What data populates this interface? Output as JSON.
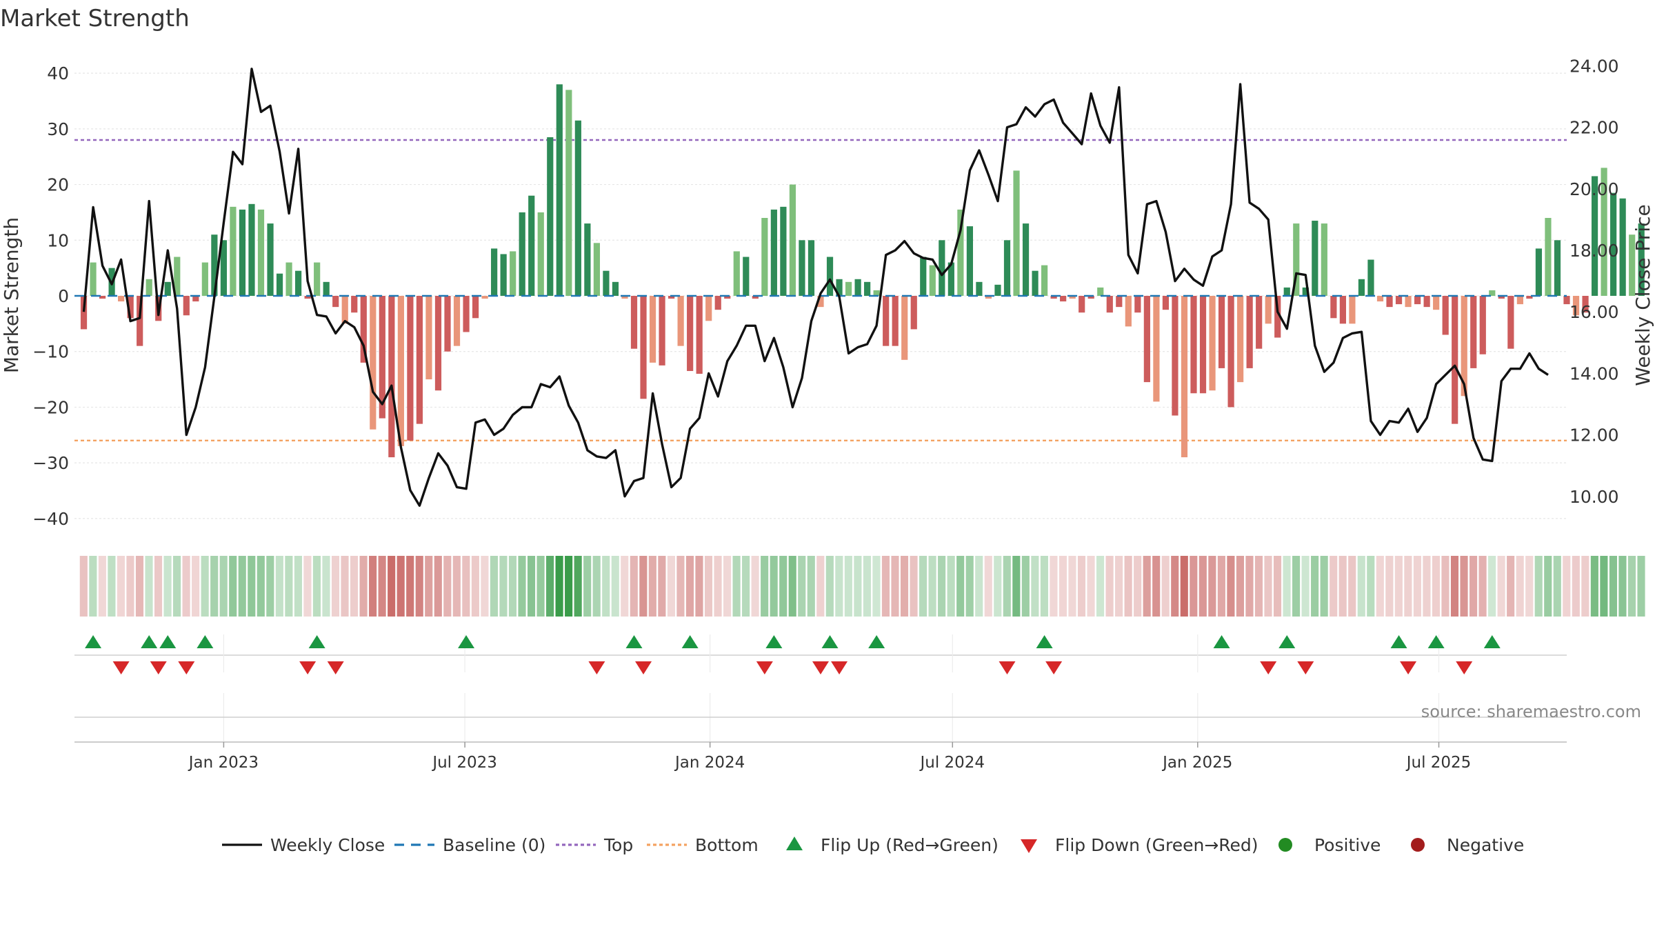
{
  "chart_data": {
    "type": "bar",
    "title": "Market Strength",
    "ylabel_left": "Market Strength",
    "ylabel_right": "Weekly Close Price",
    "source": "source: sharemaestro.com",
    "left_axis": {
      "ylim": [
        -42,
        42
      ],
      "ticks": [
        40,
        30,
        20,
        10,
        0,
        -10,
        -20,
        -30,
        -40
      ],
      "tick_labels": [
        "40",
        "30",
        "20",
        "10",
        "0",
        "−10",
        "−20",
        "−30",
        "−40"
      ]
    },
    "right_axis": {
      "ylim": [
        8.92,
        24.12
      ],
      "ticks": [
        24,
        22,
        20,
        18,
        16,
        14,
        12,
        10
      ],
      "tick_labels": [
        "24.00",
        "22.00",
        "20.00",
        "18.00",
        "16.00",
        "14.00",
        "12.00",
        "10.00"
      ]
    },
    "x_axis": {
      "start": "2022-09-11",
      "end": "2025-10-05",
      "ticks": [
        {
          "date": "2023-01-01",
          "label": "Jan 2023"
        },
        {
          "date": "2023-07-01",
          "label": "Jul 2023"
        },
        {
          "date": "2024-01-01",
          "label": "Jan 2024"
        },
        {
          "date": "2024-07-01",
          "label": "Jul 2024"
        },
        {
          "date": "2025-01-01",
          "label": "Jan 2025"
        },
        {
          "date": "2025-07-01",
          "label": "Jul 2025"
        }
      ]
    },
    "first_week": "2022-09-18",
    "reference_lines": {
      "top": 28,
      "bottom": -26,
      "baseline": 0
    },
    "strength": [
      -6,
      6,
      -0.5,
      5,
      -1,
      -4,
      -9,
      3,
      -4.5,
      2.5,
      7,
      -3.5,
      -1,
      6,
      11,
      10,
      16,
      15.5,
      16.5,
      15.5,
      13,
      4,
      6,
      4.5,
      -0.5,
      6,
      2.5,
      -2,
      -5,
      -3,
      -12,
      -24,
      -22,
      -29,
      -27,
      -26,
      -23,
      -15,
      -17,
      -10,
      -9,
      -6.5,
      -4,
      -0.5,
      8.5,
      7.5,
      8,
      15,
      18,
      15,
      28.5,
      38,
      37,
      31.5,
      13,
      9.5,
      4.5,
      2.5,
      -0.5,
      -9.5,
      -18.5,
      -12,
      -12.5,
      -0.5,
      -9,
      -13.5,
      -14,
      -4.5,
      -2.5,
      -0.5,
      8,
      7,
      -0.5,
      14,
      15.5,
      16,
      20,
      10,
      10,
      -2,
      7,
      3,
      2.5,
      3,
      2.5,
      1,
      -9,
      -9,
      -11.5,
      -6,
      7,
      5.5,
      10,
      6,
      15.5,
      12.5,
      2.5,
      -0.5,
      2,
      10,
      22.5,
      13,
      4.5,
      5.5,
      -0.5,
      -1,
      -0.5,
      -3,
      -0.5,
      1.5,
      -3,
      -2,
      -5.5,
      -3,
      -15.5,
      -19,
      -2.5,
      -21.5,
      -29,
      -17.5,
      -17.5,
      -17,
      -13,
      -20,
      -15.5,
      -13,
      -9.5,
      -5,
      -7.5,
      1.5,
      13,
      1.5,
      13.5,
      13,
      -4,
      -5,
      -5,
      3,
      6.5,
      -1,
      -2,
      -1.5,
      -2,
      -1.5,
      -2,
      -2.5,
      -7,
      -23,
      -18,
      -13,
      -10.5,
      1,
      -0.5,
      -9.5,
      -1.5,
      -0.5,
      8.5,
      14,
      10,
      -1.5,
      -3.5,
      -3,
      21.5,
      23,
      18.5,
      17.5,
      11,
      13
    ],
    "weekly_close": [
      16.0,
      19.4,
      17.5,
      16.9,
      17.7,
      15.7,
      15.8,
      19.6,
      15.9,
      18.0,
      16.1,
      12.0,
      12.9,
      14.2,
      16.5,
      18.9,
      21.2,
      20.8,
      23.9,
      22.5,
      22.7,
      21.2,
      19.2,
      21.3,
      17.0,
      15.9,
      15.85,
      15.3,
      15.7,
      15.5,
      14.9,
      13.4,
      13.0,
      13.6,
      11.6,
      10.2,
      9.7,
      10.6,
      11.4,
      11.0,
      10.3,
      10.25,
      12.4,
      12.5,
      12.0,
      12.2,
      12.65,
      12.9,
      12.9,
      13.65,
      13.55,
      13.9,
      12.95,
      12.4,
      11.5,
      11.3,
      11.25,
      11.5,
      10.0,
      10.5,
      10.6,
      13.35,
      11.7,
      10.3,
      10.6,
      12.2,
      12.55,
      14.0,
      13.25,
      14.4,
      14.9,
      15.55,
      15.55,
      14.4,
      15.15,
      14.2,
      12.9,
      13.85,
      15.7,
      16.6,
      17.05,
      16.5,
      14.65,
      14.85,
      14.95,
      15.55,
      17.85,
      18.0,
      18.3,
      17.9,
      17.75,
      17.7,
      17.2,
      17.55,
      18.65,
      20.6,
      21.25,
      20.45,
      19.6,
      22.0,
      22.1,
      22.65,
      22.35,
      22.75,
      22.9,
      22.15,
      21.8,
      21.45,
      23.1,
      22.05,
      21.5,
      23.3,
      17.85,
      17.25,
      19.5,
      19.6,
      18.6,
      17.0,
      17.4,
      17.05,
      16.85,
      17.8,
      18.0,
      19.5,
      23.4,
      19.55,
      19.35,
      19.0,
      16.0,
      15.45,
      17.25,
      17.2,
      14.9,
      14.05,
      14.35,
      15.15,
      15.3,
      15.35,
      12.45,
      12.0,
      12.45,
      12.4,
      12.85,
      12.1,
      12.55,
      13.65,
      13.95,
      14.25,
      13.65,
      11.9,
      11.2,
      11.15,
      13.75,
      14.15,
      14.15,
      14.65,
      14.15,
      13.95
    ],
    "flip_up_weeks": [
      1,
      7,
      9,
      13,
      25,
      41,
      59,
      65,
      74,
      80,
      85,
      103,
      122,
      129,
      141,
      145,
      151
    ],
    "flip_down_weeks": [
      4,
      8,
      11,
      24,
      27,
      55,
      60,
      73,
      79,
      81,
      99,
      104,
      127,
      131,
      142,
      148
    ],
    "legend": [
      {
        "key": "close",
        "label": "Weekly Close"
      },
      {
        "key": "baseline",
        "label": "Baseline (0)"
      },
      {
        "key": "top",
        "label": "Top"
      },
      {
        "key": "bottom",
        "label": "Bottom"
      },
      {
        "key": "flip_up",
        "label": "Flip Up (Red→Green)"
      },
      {
        "key": "flip_down",
        "label": "Flip Down (Green→Red)"
      },
      {
        "key": "positive",
        "label": "Positive"
      },
      {
        "key": "negative",
        "label": "Negative"
      }
    ]
  },
  "colors": {
    "pos_dark": "#2e8b57",
    "pos_light": "#7fbf7b",
    "neg_dark": "#cd5c5c",
    "neg_light": "#e9967a",
    "close_line": "#111111",
    "baseline": "#1f77b4",
    "top": "#9467bd",
    "bottom": "#f4a261",
    "flip_up": "#1a9641",
    "flip_down": "#d62728",
    "positive_dot": "#228b22",
    "negative_dot": "#a31d1d",
    "grid": "#e6e6e6",
    "axis_text": "#333333",
    "source_text": "#888888"
  }
}
